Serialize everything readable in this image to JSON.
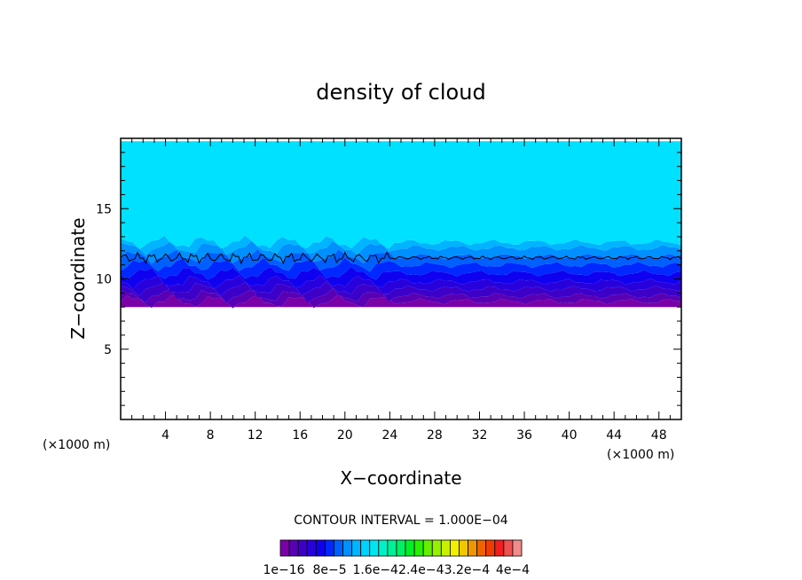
{
  "chart_data": {
    "type": "heatmap",
    "title": "density of cloud",
    "xlabel": "X−coordinate",
    "ylabel": "Z−coordinate",
    "x_unit_label": "(×1000 m)",
    "y_unit_label": "(×1000 m)",
    "xlim": [
      0,
      50
    ],
    "ylim": [
      0,
      20
    ],
    "x_ticks": [
      4,
      8,
      12,
      16,
      20,
      24,
      28,
      32,
      36,
      40,
      44,
      48
    ],
    "y_ticks": [
      5,
      10,
      15
    ],
    "contour_interval_label": "CONTOUR INTERVAL = 1.000E−04",
    "colorbar": {
      "colors": [
        "#7a00a8",
        "#5a00b4",
        "#3c00c8",
        "#2800dc",
        "#1000f0",
        "#0028ff",
        "#0060ff",
        "#0090ff",
        "#00b4ff",
        "#00d2ff",
        "#00e6f0",
        "#00f0c8",
        "#00f096",
        "#00f064",
        "#00f028",
        "#28f000",
        "#64f000",
        "#96f000",
        "#c8f000",
        "#f0f000",
        "#f0c800",
        "#f09600",
        "#f06400",
        "#f03c00",
        "#f01e1e",
        "#f05050",
        "#f08c8c"
      ],
      "tick_labels": [
        "1e−16",
        "8e−5",
        "1.6e−4",
        "2.4e−4",
        "3.2e−4",
        "4e−4"
      ]
    },
    "bands": [
      {
        "z_bottom": 8.0,
        "z_top": 8.4,
        "color": "#7a00a8"
      },
      {
        "z_bottom": 8.4,
        "z_top": 8.8,
        "color": "#5a00b4"
      },
      {
        "z_bottom": 8.8,
        "z_top": 9.3,
        "color": "#3c00c8"
      },
      {
        "z_bottom": 9.3,
        "z_top": 9.8,
        "color": "#2800dc"
      },
      {
        "z_bottom": 9.8,
        "z_top": 10.4,
        "color": "#1000f0"
      },
      {
        "z_bottom": 10.4,
        "z_top": 11.0,
        "color": "#0028ff"
      },
      {
        "z_bottom": 11.0,
        "z_top": 11.6,
        "color": "#0060ff"
      },
      {
        "z_bottom": 11.6,
        "z_top": 12.2,
        "color": "#0090ff"
      },
      {
        "z_bottom": 12.2,
        "z_top": 12.6,
        "color": "#00b4ff"
      },
      {
        "z_bottom": 12.6,
        "z_top": 19.8,
        "color": "#00e0ff"
      }
    ],
    "contour_line_z": 11.5
  }
}
